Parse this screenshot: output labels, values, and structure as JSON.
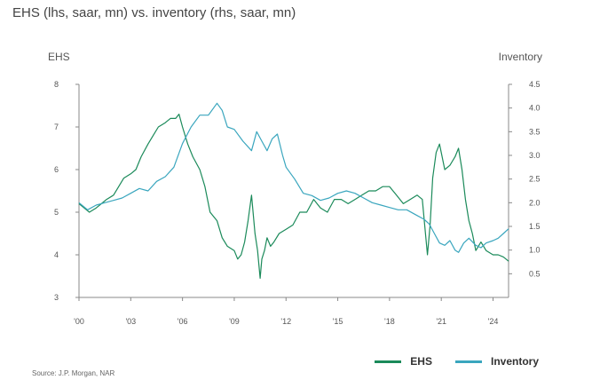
{
  "title": "EHS (lhs, saar, mn) vs. inventory (rhs, saar, mn)",
  "source": "Source: J.P. Morgan, NAR",
  "colors": {
    "ehs": "#1b8a5a",
    "inventory": "#3aa6be",
    "axis": "#888888"
  },
  "chart_data": {
    "type": "line",
    "title": "EHS (lhs, saar, mn) vs. inventory (rhs, saar, mn)",
    "left_axis_label": "EHS",
    "right_axis_label": "Inventory",
    "x_range": [
      2000,
      2024.9
    ],
    "x_ticks": [
      {
        "value": 2000,
        "label": "'00"
      },
      {
        "value": 2003,
        "label": "'03"
      },
      {
        "value": 2006,
        "label": "'06"
      },
      {
        "value": 2009,
        "label": "'09"
      },
      {
        "value": 2012,
        "label": "'12"
      },
      {
        "value": 2015,
        "label": "'15"
      },
      {
        "value": 2018,
        "label": "'18"
      },
      {
        "value": 2021,
        "label": "'21"
      },
      {
        "value": 2024,
        "label": "'24"
      }
    ],
    "y_left_range": [
      3,
      8
    ],
    "y_left_ticks": [
      {
        "value": 3,
        "label": "3"
      },
      {
        "value": 4,
        "label": "4"
      },
      {
        "value": 5,
        "label": "5"
      },
      {
        "value": 6,
        "label": "6"
      },
      {
        "value": 7,
        "label": "7"
      },
      {
        "value": 8,
        "label": "8"
      }
    ],
    "y_right_range": [
      0,
      4.5
    ],
    "y_right_ticks": [
      {
        "value": 0.5,
        "label": "0.5"
      },
      {
        "value": 1.0,
        "label": "1.0"
      },
      {
        "value": 1.5,
        "label": "1.5"
      },
      {
        "value": 2.0,
        "label": "2.0"
      },
      {
        "value": 2.5,
        "label": "2.5"
      },
      {
        "value": 3.0,
        "label": "3.0"
      },
      {
        "value": 3.5,
        "label": "3.5"
      },
      {
        "value": 4.0,
        "label": "4.0"
      },
      {
        "value": 4.5,
        "label": "4.5"
      }
    ],
    "series": [
      {
        "name": "EHS",
        "axis": "left",
        "x": [
          2000.0,
          2000.3,
          2000.6,
          2001.0,
          2001.3,
          2001.6,
          2002.0,
          2002.3,
          2002.6,
          2003.0,
          2003.3,
          2003.6,
          2004.0,
          2004.3,
          2004.6,
          2005.0,
          2005.3,
          2005.6,
          2005.8,
          2006.0,
          2006.3,
          2006.6,
          2007.0,
          2007.3,
          2007.6,
          2008.0,
          2008.3,
          2008.6,
          2009.0,
          2009.2,
          2009.4,
          2009.6,
          2009.8,
          2010.0,
          2010.2,
          2010.35,
          2010.5,
          2010.6,
          2010.75,
          2010.9,
          2011.1,
          2011.3,
          2011.6,
          2012.0,
          2012.4,
          2012.8,
          2013.2,
          2013.6,
          2014.0,
          2014.4,
          2014.8,
          2015.2,
          2015.6,
          2016.0,
          2016.4,
          2016.8,
          2017.2,
          2017.6,
          2018.0,
          2018.4,
          2018.8,
          2019.2,
          2019.6,
          2019.9,
          2020.2,
          2020.35,
          2020.5,
          2020.7,
          2020.9,
          2021.2,
          2021.5,
          2021.8,
          2022.0,
          2022.2,
          2022.4,
          2022.6,
          2022.8,
          2023.0,
          2023.3,
          2023.6,
          2024.0,
          2024.3,
          2024.6,
          2024.9
        ],
        "values": [
          5.2,
          5.1,
          5.0,
          5.1,
          5.2,
          5.3,
          5.4,
          5.6,
          5.8,
          5.9,
          6.0,
          6.3,
          6.6,
          6.8,
          7.0,
          7.1,
          7.2,
          7.2,
          7.3,
          7.0,
          6.6,
          6.3,
          6.0,
          5.6,
          5.0,
          4.8,
          4.4,
          4.2,
          4.1,
          3.9,
          4.0,
          4.3,
          4.8,
          5.4,
          4.5,
          4.1,
          3.45,
          3.9,
          4.1,
          4.4,
          4.2,
          4.3,
          4.5,
          4.6,
          4.7,
          5.0,
          5.0,
          5.3,
          5.1,
          5.0,
          5.3,
          5.3,
          5.2,
          5.3,
          5.4,
          5.5,
          5.5,
          5.6,
          5.6,
          5.4,
          5.2,
          5.3,
          5.4,
          5.3,
          4.0,
          4.7,
          5.8,
          6.4,
          6.6,
          6.0,
          6.1,
          6.3,
          6.5,
          6.0,
          5.3,
          4.8,
          4.5,
          4.1,
          4.3,
          4.1,
          4.0,
          4.0,
          3.95,
          3.85
        ]
      },
      {
        "name": "Inventory",
        "axis": "right",
        "x": [
          2000.0,
          2000.5,
          2001.0,
          2001.5,
          2002.0,
          2002.5,
          2003.0,
          2003.5,
          2004.0,
          2004.5,
          2005.0,
          2005.5,
          2006.0,
          2006.5,
          2007.0,
          2007.5,
          2008.0,
          2008.3,
          2008.6,
          2009.0,
          2009.5,
          2010.0,
          2010.3,
          2010.6,
          2010.9,
          2011.2,
          2011.5,
          2011.8,
          2012.0,
          2012.5,
          2013.0,
          2013.5,
          2014.0,
          2014.5,
          2015.0,
          2015.5,
          2016.0,
          2016.5,
          2017.0,
          2017.5,
          2018.0,
          2018.5,
          2019.0,
          2019.5,
          2020.0,
          2020.3,
          2020.6,
          2020.9,
          2021.2,
          2021.5,
          2021.8,
          2022.0,
          2022.3,
          2022.6,
          2023.0,
          2023.3,
          2023.6,
          2024.0,
          2024.3,
          2024.6,
          2024.9
        ],
        "values": [
          2.0,
          1.85,
          1.95,
          2.0,
          2.05,
          2.1,
          2.2,
          2.3,
          2.25,
          2.45,
          2.55,
          2.75,
          3.25,
          3.6,
          3.85,
          3.85,
          4.1,
          3.95,
          3.6,
          3.55,
          3.3,
          3.1,
          3.5,
          3.3,
          3.1,
          3.35,
          3.45,
          3.0,
          2.75,
          2.5,
          2.2,
          2.15,
          2.05,
          2.1,
          2.2,
          2.25,
          2.2,
          2.1,
          2.0,
          1.95,
          1.9,
          1.85,
          1.85,
          1.75,
          1.65,
          1.55,
          1.35,
          1.15,
          1.1,
          1.2,
          1.0,
          0.95,
          1.15,
          1.25,
          1.1,
          1.05,
          1.15,
          1.2,
          1.25,
          1.35,
          1.45
        ]
      }
    ]
  }
}
